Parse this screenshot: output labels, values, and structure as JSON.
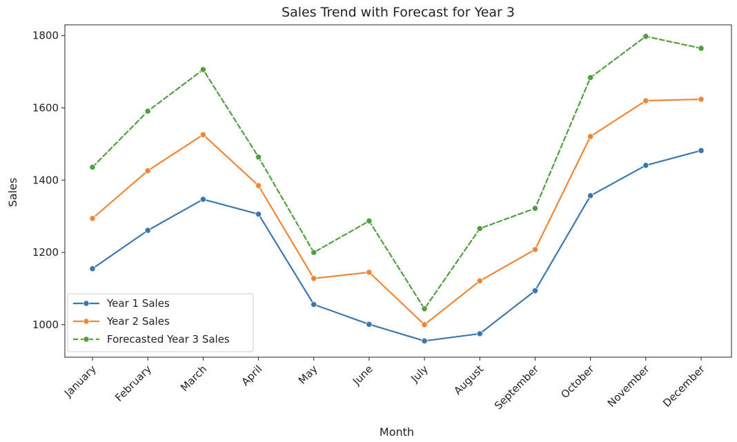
{
  "chart_data": {
    "type": "line",
    "title": "Sales Trend with Forecast for Year 3",
    "xlabel": "Month",
    "ylabel": "Sales",
    "categories": [
      "January",
      "February",
      "March",
      "April",
      "May",
      "June",
      "July",
      "August",
      "September",
      "October",
      "November",
      "December"
    ],
    "ylim": [
      910,
      1830
    ],
    "yticks": [
      1000,
      1200,
      1400,
      1600,
      1800
    ],
    "grid": false,
    "legend_position": "lower-left",
    "series": [
      {
        "name": "Year 1 Sales",
        "color": "#3a76af",
        "linestyle": "solid",
        "marker": "circle",
        "values": [
          1155,
          1261,
          1347,
          1306,
          1056,
          1001,
          955,
          975,
          1094,
          1357,
          1441,
          1482
        ]
      },
      {
        "name": "Year 2 Sales",
        "color": "#ef8636",
        "linestyle": "solid",
        "marker": "circle",
        "values": [
          1294,
          1426,
          1526,
          1385,
          1128,
          1145,
          1000,
          1121,
          1208,
          1521,
          1620,
          1624
        ]
      },
      {
        "name": "Forecasted Year 3 Sales",
        "color": "#519e3e",
        "linestyle": "dashed",
        "marker": "circle",
        "values": [
          1436,
          1591,
          1706,
          1464,
          1200,
          1287,
          1044,
          1266,
          1322,
          1684,
          1798,
          1765
        ]
      }
    ]
  }
}
